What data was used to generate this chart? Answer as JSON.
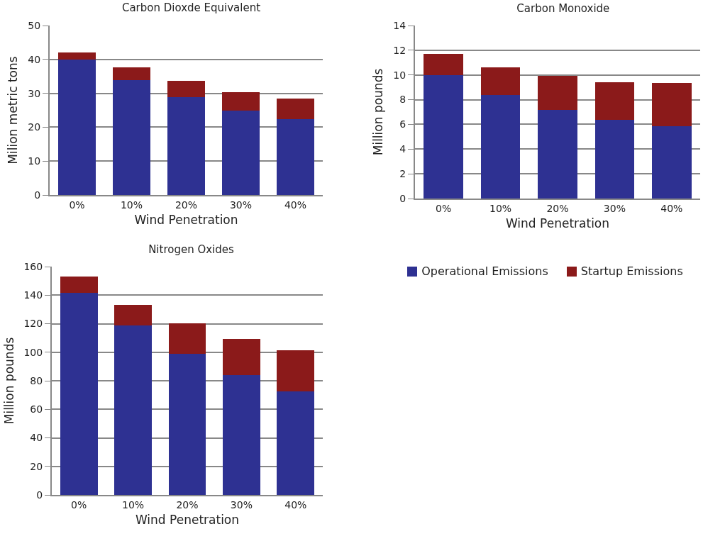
{
  "chart_data": [
    {
      "type": "bar",
      "title": "Carbon Dioxde Equivalent",
      "xlabel": "Wind Penetration",
      "ylabel": "Milion metric tons",
      "categories": [
        "0%",
        "10%",
        "20%",
        "30%",
        "40%"
      ],
      "stacked": true,
      "ylim": [
        0,
        50
      ],
      "yticks": [
        0,
        10,
        20,
        30,
        40,
        50
      ],
      "grid": "y",
      "legend": false,
      "series": [
        {
          "color": "#2e3192",
          "values": [
            40,
            34,
            29,
            25,
            22.5
          ]
        },
        {
          "color": "#8b1a1a",
          "values": [
            2,
            3.5,
            4.5,
            5.3,
            5.8
          ]
        }
      ]
    },
    {
      "type": "bar",
      "title": "Carbon Monoxide",
      "xlabel": "Wind Penetration",
      "ylabel": "Million pounds",
      "categories": [
        "0%",
        "10%",
        "20%",
        "30%",
        "40%"
      ],
      "stacked": true,
      "ylim": [
        0,
        14
      ],
      "yticks": [
        0,
        2,
        4,
        6,
        8,
        10,
        12,
        14
      ],
      "grid": "y",
      "legend": "bottom",
      "series": [
        {
          "name": "Operational Emissions",
          "color": "#2e3192",
          "values": [
            10,
            8.4,
            7.2,
            6.4,
            5.9
          ]
        },
        {
          "name": "Startup Emissions",
          "color": "#8b1a1a",
          "values": [
            1.7,
            2.2,
            2.7,
            3.0,
            3.4
          ]
        }
      ]
    },
    {
      "type": "bar",
      "title": "Nitrogen Oxides",
      "xlabel": "Wind Penetration",
      "ylabel": "Million pounds",
      "categories": [
        "0%",
        "10%",
        "20%",
        "30%",
        "40%"
      ],
      "stacked": true,
      "ylim": [
        0,
        160
      ],
      "yticks": [
        0,
        20,
        40,
        60,
        80,
        100,
        120,
        140,
        160
      ],
      "grid": "y",
      "legend": false,
      "series": [
        {
          "color": "#2e3192",
          "values": [
            142,
            119,
            99,
            84,
            73
          ]
        },
        {
          "color": "#8b1a1a",
          "values": [
            11,
            14,
            21,
            25,
            28
          ]
        }
      ]
    }
  ]
}
